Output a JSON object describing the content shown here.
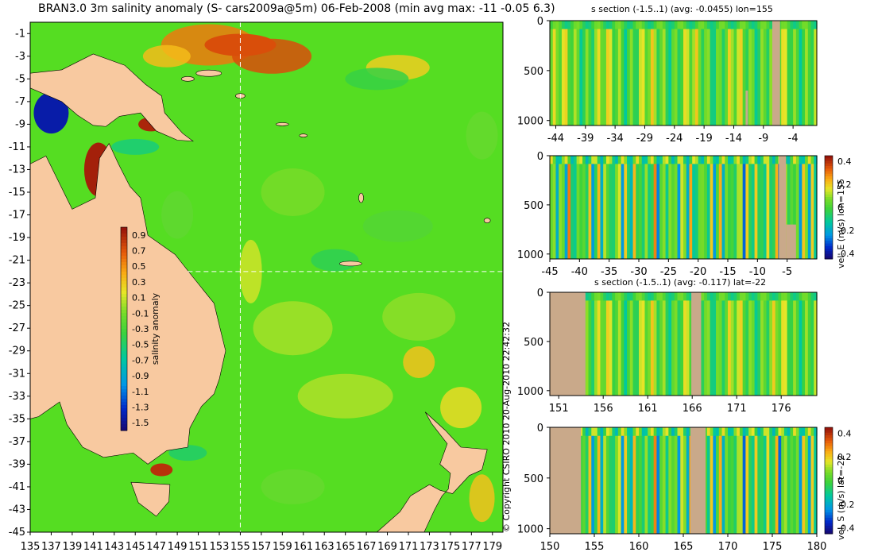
{
  "main_title": "BRAN3.0 3m salinity anomaly (S- cars2009a@5m) 06-Feb-2008 (min avg max: -11 -0.05 6.3)",
  "copyright": "© Copyright CSIRO 2010  20-Aug-2010 22:42:32",
  "colors": {
    "land": "#f8c9a0",
    "bathy_mask": "#c9a98a",
    "ocean_mid": "#55dd22",
    "cross_hair": "#ffffff"
  },
  "chart_data": [
    {
      "type": "heatmap",
      "name": "map",
      "title": "BRAN3.0 3m salinity anomaly (S- cars2009a@5m) 06-Feb-2008 (min avg max: -11 -0.05 6.3)",
      "x_ticks": [
        135,
        137,
        139,
        141,
        143,
        145,
        147,
        149,
        151,
        153,
        155,
        157,
        159,
        161,
        163,
        165,
        167,
        169,
        171,
        173,
        175,
        177,
        179
      ],
      "y_ticks": [
        -1,
        -3,
        -5,
        -7,
        -9,
        -11,
        -13,
        -15,
        -17,
        -19,
        -21,
        -23,
        -25,
        -27,
        -29,
        -31,
        -33,
        -35,
        -37,
        -39,
        -41,
        -43,
        -45
      ],
      "xlim": [
        135,
        180
      ],
      "ylim": [
        -45,
        0
      ],
      "section_lon": 155,
      "section_lat": -22,
      "colorbar": {
        "label": "salinity anomaly",
        "ticks": [
          "0.9",
          "0.7",
          "0.5",
          "0.3",
          "0.1",
          "-0.1",
          "-0.3",
          "-0.5",
          "-0.7",
          "-0.9",
          "-1.1",
          "-1.3",
          "-1.5"
        ],
        "range": [
          -1.6,
          1.0
        ]
      }
    },
    {
      "type": "heatmap",
      "name": "salinity-section-lon155",
      "title": "s section (-1.5..1) (avg: -0.0455) lon=155",
      "x_ticks": [
        "-44",
        "-39",
        "-34",
        "-29",
        "-24",
        "-19",
        "-14",
        "-9",
        "-4"
      ],
      "y_ticks": [
        "0",
        "500",
        "1000"
      ],
      "xlim": [
        -45,
        0
      ],
      "ylim": [
        1050,
        0
      ]
    },
    {
      "type": "heatmap",
      "name": "velocity-east-lon155",
      "title": "",
      "x_ticks": [
        "-45",
        "-40",
        "-35",
        "-30",
        "-25",
        "-20",
        "-15",
        "-10",
        "-5"
      ],
      "y_ticks": [
        "0",
        "500",
        "1000"
      ],
      "xlim": [
        -45,
        0
      ],
      "ylim": [
        1050,
        0
      ],
      "colorbar": {
        "label": "vel. E (m/s) lon=155",
        "ticks": [
          "0.4",
          "0.2",
          "0",
          "-0.2",
          "-0.4"
        ],
        "range": [
          -0.45,
          0.45
        ]
      }
    },
    {
      "type": "heatmap",
      "name": "salinity-section-lat-22",
      "title": "s section (-1.5..1) (avg: -0.117) lat=-22",
      "x_ticks": [
        "151",
        "156",
        "161",
        "166",
        "171",
        "176"
      ],
      "y_ticks": [
        "0",
        "500",
        "1000"
      ],
      "xlim": [
        150,
        180
      ],
      "ylim": [
        1050,
        0
      ]
    },
    {
      "type": "heatmap",
      "name": "velocity-south-lat-22",
      "title": "",
      "x_ticks": [
        "150",
        "155",
        "160",
        "165",
        "170",
        "175",
        "180"
      ],
      "y_ticks": [
        "0",
        "500",
        "1000"
      ],
      "xlim": [
        150,
        180
      ],
      "ylim": [
        1050,
        0
      ],
      "colorbar": {
        "label": "vel. S (m/s) lat=-22",
        "ticks": [
          "0.4",
          "0.2",
          "0",
          "-0.2",
          "-0.4"
        ],
        "range": [
          -0.45,
          0.45
        ]
      }
    }
  ]
}
